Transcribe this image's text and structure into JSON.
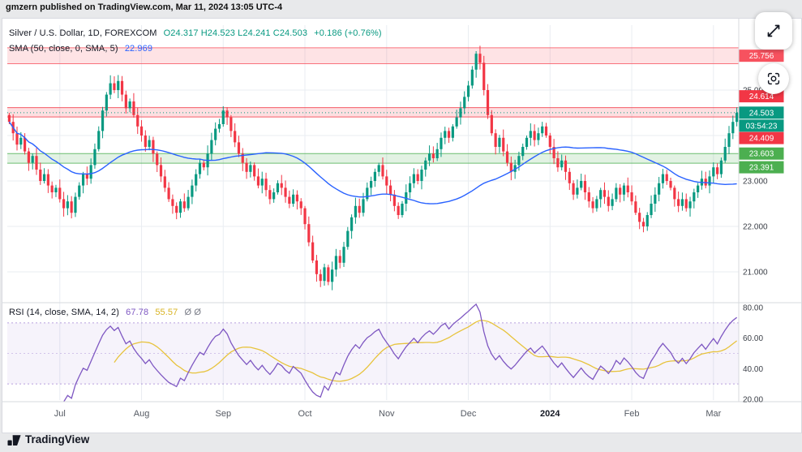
{
  "meta": {
    "publish_note": "gmzern published on TradingView.com, Mar 11, 2024 13:05 UTC-4"
  },
  "header": {
    "symbol": "Silver / U.S. Dollar, 1D, FOREXCOM",
    "ohlc": "O24.317  H24.523  L24.241  C24.503",
    "change": "+0.186 (+0.76%)"
  },
  "sma_legend": {
    "label": "SMA (50, close, 0, SMA, 5)",
    "value": "22.969"
  },
  "rsi_legend": {
    "label": "RSI (14, close, SMA, 14, 2)",
    "value1": "67.78",
    "value2": "55.57",
    "placeholders": "Ø Ø"
  },
  "footer": {
    "brand": "TradingView"
  },
  "colors": {
    "up": "#089981",
    "down": "#f23645",
    "sma": "#2962ff",
    "rsi": "#7e57c2",
    "rsi_sma": "#e7c33c",
    "grid": "#e9edf2",
    "axis_text": "#3c4048",
    "divider": "#d7dade"
  },
  "price_axis": {
    "ticks": [
      {
        "value": 25,
        "label": "25.000"
      },
      {
        "value": 24,
        "label": "24.000"
      },
      {
        "value": 23,
        "label": "23.000"
      },
      {
        "value": 22,
        "label": "22.000"
      },
      {
        "value": 21,
        "label": "21.000"
      }
    ],
    "labels": [
      {
        "text": "25.756",
        "price": 25.756,
        "bg": "#f7525f",
        "dy": 0
      },
      {
        "text": "24.614",
        "price": 24.614,
        "bg": "#f23645",
        "dy": -14
      },
      {
        "text": "24.503",
        "price": 24.503,
        "bg": "#089981",
        "dy": 0
      },
      {
        "text": "03:54:23",
        "price": 24.503,
        "bg": "#089981",
        "dy": 16
      },
      {
        "text": "24.409",
        "price": 24.409,
        "bg": "#f23645",
        "dy": 26
      },
      {
        "text": "23.603",
        "price": 23.603,
        "bg": "#4caf50",
        "dy": 0
      },
      {
        "text": "23.391",
        "price": 23.391,
        "bg": "#4caf50",
        "dy": 5
      }
    ]
  },
  "chart_data": [
    {
      "type": "candlestick",
      "title": "Silver / U.S. Dollar, 1D, FOREXCOM",
      "last_bar": {
        "o": 24.317,
        "h": 24.523,
        "l": 24.241,
        "c": 24.503,
        "change": 0.186,
        "change_pct": 0.76
      },
      "current_price": 24.503,
      "countdown": "03:54:23",
      "ylim": [
        20.4,
        26.5
      ],
      "x_labels": [
        "Jul",
        "Aug",
        "Sep",
        "Oct",
        "Nov",
        "Dec",
        "2024",
        "Feb",
        "Mar"
      ],
      "month_start_indices": [
        13,
        34,
        55,
        76,
        97,
        118,
        139,
        160,
        181
      ],
      "series_note": "values are estimated daily closes, Jun 2023 - Mar 11 2024",
      "closes": [
        24.3,
        24.05,
        23.8,
        23.95,
        23.65,
        23.4,
        23.55,
        23.25,
        23.0,
        23.15,
        22.9,
        22.75,
        22.85,
        22.6,
        22.4,
        22.55,
        22.3,
        22.65,
        22.9,
        23.15,
        23.05,
        23.35,
        23.7,
        24.1,
        24.55,
        24.9,
        25.15,
        25.0,
        25.2,
        24.9,
        24.6,
        24.75,
        24.45,
        24.2,
        24.0,
        23.75,
        23.9,
        23.6,
        23.35,
        23.1,
        22.85,
        22.6,
        22.45,
        22.3,
        22.55,
        22.4,
        22.65,
        22.9,
        23.15,
        23.4,
        23.3,
        23.6,
        23.9,
        24.15,
        24.25,
        24.55,
        24.4,
        24.1,
        23.85,
        23.6,
        23.4,
        23.2,
        23.35,
        23.1,
        22.9,
        23.05,
        22.8,
        22.6,
        22.75,
        22.95,
        22.85,
        22.65,
        22.5,
        22.7,
        22.55,
        22.4,
        22.05,
        21.65,
        21.25,
        20.95,
        20.8,
        21.1,
        20.78,
        21.05,
        21.35,
        21.2,
        21.55,
        21.9,
        22.2,
        22.45,
        22.3,
        22.6,
        22.85,
        23.0,
        23.2,
        23.35,
        23.1,
        22.9,
        22.7,
        22.45,
        22.25,
        22.5,
        22.75,
        22.95,
        23.15,
        23.0,
        23.25,
        23.45,
        23.6,
        23.5,
        23.7,
        23.95,
        24.1,
        23.95,
        24.2,
        24.4,
        24.6,
        24.85,
        25.1,
        25.45,
        25.8,
        25.6,
        25.0,
        24.45,
        24.05,
        23.75,
        23.95,
        23.65,
        23.4,
        23.2,
        23.35,
        23.55,
        23.75,
        23.95,
        24.1,
        23.9,
        24.05,
        24.2,
        24.0,
        23.75,
        23.5,
        23.3,
        23.45,
        23.2,
        22.95,
        22.7,
        22.85,
        23.0,
        22.75,
        22.55,
        22.4,
        22.6,
        22.8,
        22.65,
        22.45,
        22.6,
        22.85,
        22.7,
        22.9,
        22.75,
        22.55,
        22.3,
        22.1,
        22.0,
        22.25,
        22.5,
        22.7,
        22.95,
        23.15,
        23.0,
        22.85,
        22.6,
        22.45,
        22.6,
        22.4,
        22.55,
        22.75,
        22.9,
        23.05,
        22.9,
        23.1,
        23.3,
        23.15,
        23.45,
        23.75,
        24.05,
        24.3,
        24.503
      ],
      "overlays": [
        {
          "name": "SMA 50",
          "value": 22.969,
          "color": "#2962ff"
        }
      ],
      "zones": [
        {
          "from": 25.58,
          "to": 25.93,
          "color": "#f7525f",
          "label": "25.756"
        },
        {
          "from": 24.409,
          "to": 24.614,
          "color": "#f23645",
          "labels": [
            "24.614",
            "24.409"
          ]
        },
        {
          "from": 23.391,
          "to": 23.603,
          "color": "#4caf50",
          "labels": [
            "23.603",
            "23.391"
          ]
        }
      ]
    },
    {
      "type": "line",
      "name": "RSI (14, close, SMA, 14, 2)",
      "series": [
        {
          "name": "RSI",
          "last": 67.78,
          "color": "#7e57c2"
        },
        {
          "name": "RSI SMA",
          "last": 55.57,
          "color": "#e7c33c"
        }
      ],
      "band": [
        30,
        70
      ],
      "mid": 50,
      "ylim": [
        15,
        85
      ],
      "y_ticks": [
        {
          "value": 80,
          "label": "80.00"
        },
        {
          "value": 60,
          "label": "60.00"
        },
        {
          "value": 40,
          "label": "40.00"
        },
        {
          "value": 20,
          "label": "20.00"
        }
      ],
      "note": "RSI curve derived from the close series above: RSI(14) with SMA(14) overlay"
    }
  ]
}
